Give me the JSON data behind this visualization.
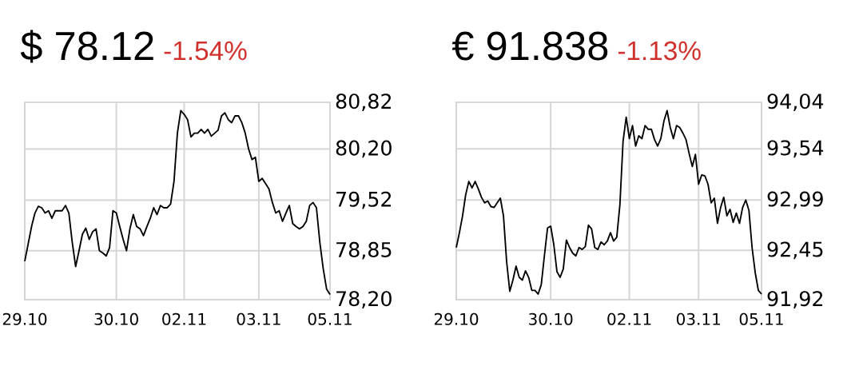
{
  "chart_data": [
    {
      "type": "line",
      "title": "$ 78.12",
      "subtitle": "-1.54%",
      "ylim": [
        78.2,
        80.82
      ],
      "categories": [
        "29.10",
        null,
        null,
        null,
        null,
        null,
        null,
        null,
        null,
        null,
        null,
        null,
        null,
        null,
        null,
        null,
        null,
        null,
        null,
        null,
        null,
        null,
        null,
        null,
        null,
        null,
        null,
        "30.10",
        null,
        null,
        null,
        null,
        null,
        null,
        null,
        null,
        null,
        null,
        null,
        null,
        null,
        null,
        null,
        null,
        null,
        null,
        null,
        "02.11",
        null,
        null,
        null,
        null,
        null,
        null,
        null,
        null,
        null,
        null,
        null,
        null,
        null,
        null,
        null,
        null,
        null,
        null,
        null,
        null,
        null,
        "03.11",
        null,
        null,
        null,
        null,
        null,
        null,
        null,
        null,
        null,
        null,
        null,
        null,
        null,
        null,
        null,
        null,
        null,
        null,
        null,
        null,
        "05.11"
      ],
      "yticks": [
        {
          "value": 78.2,
          "label": "78,20"
        },
        {
          "value": 78.85,
          "label": "78,85"
        },
        {
          "value": 79.52,
          "label": "79,52"
        },
        {
          "value": 80.2,
          "label": "80,20"
        },
        {
          "value": 80.82,
          "label": "80,82"
        }
      ],
      "grid": true,
      "series": [
        {
          "color": "#000000",
          "values": [
            78.71,
            78.94,
            79.17,
            79.35,
            79.44,
            79.42,
            79.35,
            79.38,
            79.28,
            79.38,
            79.38,
            79.38,
            79.45,
            79.35,
            78.96,
            78.64,
            78.85,
            79.07,
            79.15,
            79.0,
            79.1,
            79.14,
            78.85,
            78.82,
            78.78,
            78.89,
            79.38,
            79.35,
            79.17,
            79.0,
            78.85,
            79.14,
            79.33,
            79.17,
            79.14,
            79.05,
            79.17,
            79.28,
            79.42,
            79.33,
            79.45,
            79.42,
            79.42,
            79.47,
            79.77,
            80.41,
            80.71,
            80.66,
            80.59,
            80.36,
            80.41,
            80.41,
            80.46,
            80.41,
            80.46,
            80.37,
            80.41,
            80.45,
            80.64,
            80.68,
            80.59,
            80.55,
            80.64,
            80.64,
            80.55,
            80.41,
            80.2,
            80.06,
            80.09,
            79.77,
            79.81,
            79.74,
            79.67,
            79.49,
            79.35,
            79.38,
            79.24,
            79.35,
            79.45,
            79.21,
            79.17,
            79.14,
            79.17,
            79.24,
            79.45,
            79.49,
            79.42,
            78.96,
            78.61,
            78.34,
            78.27
          ]
        }
      ]
    },
    {
      "type": "line",
      "title": "€ 91.838",
      "subtitle": "-1.13%",
      "ylim": [
        91.92,
        94.04
      ],
      "categories": [
        "29.10",
        null,
        null,
        null,
        null,
        null,
        null,
        null,
        null,
        null,
        null,
        null,
        null,
        null,
        null,
        null,
        null,
        null,
        null,
        null,
        null,
        null,
        null,
        null,
        null,
        null,
        null,
        null,
        null,
        null,
        "30.10",
        null,
        null,
        null,
        null,
        null,
        null,
        null,
        null,
        null,
        null,
        null,
        null,
        null,
        null,
        null,
        null,
        null,
        null,
        null,
        null,
        null,
        null,
        null,
        null,
        "02.11",
        null,
        null,
        null,
        null,
        null,
        null,
        null,
        null,
        null,
        null,
        null,
        null,
        null,
        null,
        null,
        null,
        null,
        null,
        null,
        null,
        null,
        "03.11",
        null,
        null,
        null,
        null,
        null,
        null,
        null,
        null,
        null,
        null,
        null,
        null,
        null,
        null,
        null,
        null,
        null,
        null,
        null,
        "05.11"
      ],
      "yticks": [
        {
          "value": 91.92,
          "label": "91,92"
        },
        {
          "value": 92.45,
          "label": "92,45"
        },
        {
          "value": 92.99,
          "label": "92,99"
        },
        {
          "value": 93.54,
          "label": "93,54"
        },
        {
          "value": 94.04,
          "label": "94,04"
        }
      ],
      "grid": true,
      "series": [
        {
          "color": "#000000",
          "values": [
            92.48,
            92.64,
            92.82,
            93.05,
            93.19,
            93.12,
            93.19,
            93.11,
            93.02,
            92.96,
            92.98,
            92.92,
            92.91,
            92.96,
            93.01,
            92.82,
            92.33,
            92.01,
            92.13,
            92.28,
            92.16,
            92.13,
            92.23,
            92.16,
            92.02,
            92.02,
            91.98,
            92.08,
            92.39,
            92.69,
            92.71,
            92.51,
            92.22,
            92.16,
            92.25,
            92.56,
            92.48,
            92.42,
            92.39,
            92.48,
            92.46,
            92.49,
            92.72,
            92.68,
            92.48,
            92.46,
            92.54,
            92.51,
            92.55,
            92.64,
            92.55,
            92.59,
            92.94,
            93.62,
            93.88,
            93.65,
            93.79,
            93.57,
            93.68,
            93.65,
            93.79,
            93.75,
            93.75,
            93.64,
            93.57,
            93.65,
            93.84,
            93.95,
            93.77,
            93.65,
            93.79,
            93.77,
            93.71,
            93.64,
            93.49,
            93.35,
            93.48,
            93.16,
            93.26,
            93.25,
            93.16,
            92.96,
            93.01,
            92.74,
            92.91,
            93.02,
            92.82,
            92.89,
            92.75,
            92.85,
            92.74,
            92.91,
            92.99,
            92.88,
            92.48,
            92.21,
            92.02,
            91.98
          ]
        }
      ]
    }
  ]
}
